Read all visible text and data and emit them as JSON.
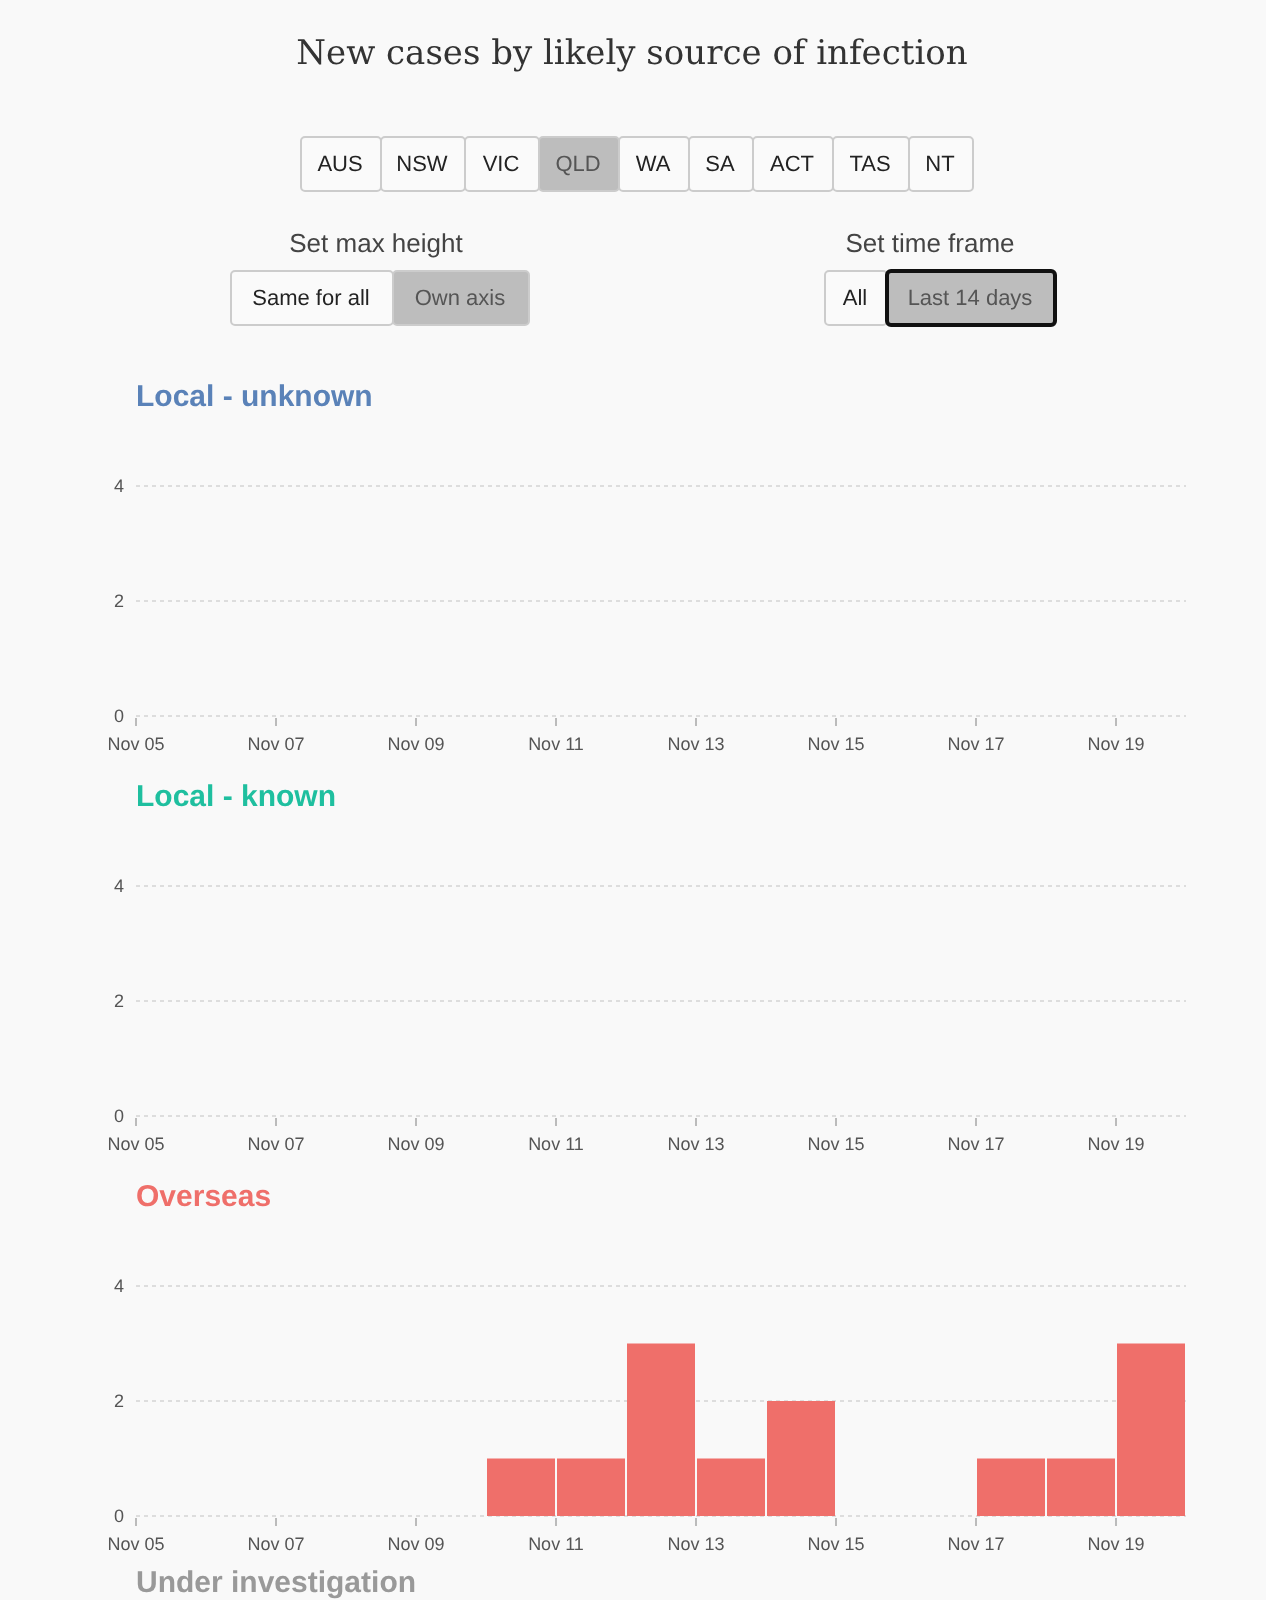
{
  "chart_data": [
    {
      "type": "other",
      "title": "New cases by likely source of infection",
      "annotations": [
        "AUS",
        "NSW",
        "VIC",
        "QLD",
        "WA",
        "SA",
        "ACT",
        "TAS",
        "NT",
        "Set max height",
        "Same for all",
        "Own axis",
        "Set time frame",
        "All",
        "Last 14 days"
      ]
    },
    {
      "type": "bar",
      "title": "Local - unknown",
      "x": [
        "--11-05T12:00",
        "--11-06T12:00",
        "--11-07T12:00",
        "--11-08T12:00",
        "--11-09T12:00",
        "--11-10T12:00",
        "--11-11T12:00",
        "--11-12T12:00",
        "--11-13T12:00",
        "--11-14T12:00",
        "--11-15T12:00",
        "--11-16T12:00",
        "--11-17T12:00",
        "--11-18T12:00",
        "--11-19T12:00"
      ],
      "series": [
        {
          "color": "#5a82b8",
          "values": [
            0,
            0,
            0,
            0,
            0,
            0,
            0,
            0,
            0,
            0,
            0,
            0,
            0,
            0,
            0
          ]
        }
      ],
      "xlim": [
        "--11-05",
        "--11-20"
      ],
      "xticks": [
        {
          "value": "--11-05",
          "label": "Nov 05"
        },
        {
          "value": "--11-07",
          "label": "Nov 07"
        },
        {
          "value": "--11-09",
          "label": "Nov 09"
        },
        {
          "value": "--11-11",
          "label": "Nov 11"
        },
        {
          "value": "--11-13",
          "label": "Nov 13"
        },
        {
          "value": "--11-15",
          "label": "Nov 15"
        },
        {
          "value": "--11-17",
          "label": "Nov 17"
        },
        {
          "value": "--11-19",
          "label": "Nov 19"
        }
      ],
      "ylim": [
        0,
        4
      ],
      "yticks": [
        0,
        2,
        4
      ],
      "grid": "y"
    },
    {
      "type": "bar",
      "title": "Local - known",
      "x": [
        "--11-05T12:00",
        "--11-06T12:00",
        "--11-07T12:00",
        "--11-08T12:00",
        "--11-09T12:00",
        "--11-10T12:00",
        "--11-11T12:00",
        "--11-12T12:00",
        "--11-13T12:00",
        "--11-14T12:00",
        "--11-15T12:00",
        "--11-16T12:00",
        "--11-17T12:00",
        "--11-18T12:00",
        "--11-19T12:00"
      ],
      "series": [
        {
          "color": "#1fbf9f",
          "values": [
            0,
            0,
            0,
            0,
            0,
            0,
            0,
            0,
            0,
            0,
            0,
            0,
            0,
            0,
            0
          ]
        }
      ],
      "xlim": [
        "--11-05",
        "--11-20"
      ],
      "xticks": [
        {
          "value": "--11-05",
          "label": "Nov 05"
        },
        {
          "value": "--11-07",
          "label": "Nov 07"
        },
        {
          "value": "--11-09",
          "label": "Nov 09"
        },
        {
          "value": "--11-11",
          "label": "Nov 11"
        },
        {
          "value": "--11-13",
          "label": "Nov 13"
        },
        {
          "value": "--11-15",
          "label": "Nov 15"
        },
        {
          "value": "--11-17",
          "label": "Nov 17"
        },
        {
          "value": "--11-19",
          "label": "Nov 19"
        }
      ],
      "ylim": [
        0,
        4
      ],
      "yticks": [
        0,
        2,
        4
      ],
      "grid": "y"
    },
    {
      "type": "bar",
      "title": "Overseas",
      "x": [
        "--11-05T12:00",
        "--11-06T12:00",
        "--11-07T12:00",
        "--11-08T12:00",
        "--11-09T12:00",
        "--11-10T12:00",
        "--11-11T12:00",
        "--11-12T12:00",
        "--11-13T12:00",
        "--11-14T12:00",
        "--11-15T12:00",
        "--11-16T12:00",
        "--11-17T12:00",
        "--11-18T12:00",
        "--11-19T12:00"
      ],
      "series": [
        {
          "color": "#ef6f6a",
          "values": [
            0,
            0,
            0,
            0,
            0,
            1,
            1,
            3,
            1,
            2,
            0,
            0,
            1,
            1,
            3
          ]
        }
      ],
      "xlim": [
        "--11-05",
        "--11-20"
      ],
      "xticks": [
        {
          "value": "--11-05",
          "label": "Nov 05"
        },
        {
          "value": "--11-07",
          "label": "Nov 07"
        },
        {
          "value": "--11-09",
          "label": "Nov 09"
        },
        {
          "value": "--11-11",
          "label": "Nov 11"
        },
        {
          "value": "--11-13",
          "label": "Nov 13"
        },
        {
          "value": "--11-15",
          "label": "Nov 15"
        },
        {
          "value": "--11-17",
          "label": "Nov 17"
        },
        {
          "value": "--11-19",
          "label": "Nov 19"
        }
      ],
      "ylim": [
        0,
        4
      ],
      "yticks": [
        0,
        2,
        4
      ],
      "grid": "y"
    },
    {
      "type": "other",
      "title": "Under investigation"
    }
  ]
}
